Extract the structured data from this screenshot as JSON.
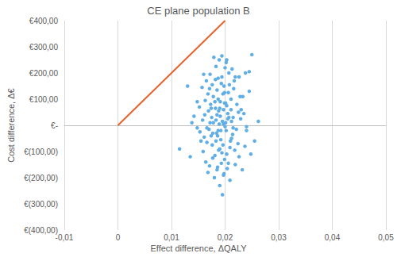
{
  "chart_data": {
    "type": "scatter",
    "title": "CE plane population B",
    "x_label": "Effect difference, ΔQALY",
    "y_label": "Cost difference, Δ€",
    "xlim": [
      -0.01,
      0.05
    ],
    "ylim": [
      -400,
      400
    ],
    "xticks": [
      {
        "value": -0.01,
        "label": "-0,01"
      },
      {
        "value": 0,
        "label": "0"
      },
      {
        "value": 0.01,
        "label": "0,01"
      },
      {
        "value": 0.02,
        "label": "0,02"
      },
      {
        "value": 0.03,
        "label": "0,03"
      },
      {
        "value": 0.04,
        "label": "0,04"
      },
      {
        "value": 0.05,
        "label": "0,05"
      }
    ],
    "yticks": [
      {
        "value": -400,
        "label": "€(400,00)"
      },
      {
        "value": -300,
        "label": "€(300,00)"
      },
      {
        "value": -200,
        "label": "€(200,00)"
      },
      {
        "value": -100,
        "label": "€(100,00)"
      },
      {
        "value": 0,
        "label": "€-"
      },
      {
        "value": 100,
        "label": "€100,00"
      },
      {
        "value": 200,
        "label": "€200,00"
      },
      {
        "value": 300,
        "label": "€300,00"
      },
      {
        "value": 400,
        "label": "€400,00"
      }
    ],
    "grid": true,
    "series": [
      {
        "type": "scatter",
        "color": "#5faee6",
        "x": [
          0.0185,
          0.0192,
          0.0201,
          0.0178,
          0.0196,
          0.021,
          0.0169,
          0.0188,
          0.0205,
          0.0193,
          0.0174,
          0.0215,
          0.0182,
          0.0199,
          0.0163,
          0.0221,
          0.019,
          0.0207,
          0.0176,
          0.0197,
          0.0158,
          0.0228,
          0.0186,
          0.0212,
          0.0171,
          0.0203,
          0.0194,
          0.0166,
          0.0219,
          0.0181,
          0.0235,
          0.0152,
          0.0198,
          0.0189,
          0.0209,
          0.0177,
          0.0224,
          0.0161,
          0.0202,
          0.0184,
          0.0172,
          0.0216,
          0.0195,
          0.024,
          0.0148,
          0.0187,
          0.0206,
          0.0168,
          0.023,
          0.018,
          0.02,
          0.0191,
          0.0213,
          0.0175,
          0.0226,
          0.0159,
          0.0197,
          0.0183,
          0.0211,
          0.0245,
          0.0115,
          0.013,
          0.0195,
          0.025,
          0.0262,
          0.0135,
          0.0245,
          0.0142,
          0.0255,
          0.0232,
          0.0179,
          0.0204,
          0.0192,
          0.0218,
          0.0165,
          0.0187,
          0.0208,
          0.0173,
          0.0199,
          0.0222,
          0.0155,
          0.0237,
          0.019,
          0.0183,
          0.0201,
          0.0168,
          0.0214,
          0.0194,
          0.0176,
          0.0229,
          0.0188,
          0.0205,
          0.017,
          0.0196,
          0.0217,
          0.0162,
          0.0185,
          0.0209,
          0.0191,
          0.0181,
          0.0148,
          0.024,
          0.02,
          0.0174,
          0.0226,
          0.0157,
          0.0193,
          0.0203,
          0.0186,
          0.0212,
          0.0197,
          0.0178,
          0.0233,
          0.0166,
          0.0189,
          0.0207,
          0.0171,
          0.0219,
          0.0183,
          0.0198,
          0.0138,
          0.0248,
          0.0202,
          0.0185,
          0.016,
          0.0225,
          0.0194,
          0.0177,
          0.0211,
          0.019,
          0.0206,
          0.0182,
          0.0215,
          0.0164,
          0.0199,
          0.0238,
          0.0153,
          0.0187,
          0.0203,
          0.0172
        ],
        "values": [
          40,
          -20,
          85,
          10,
          120,
          -60,
          55,
          -95,
          25,
          160,
          -40,
          30,
          175,
          -130,
          95,
          -15,
          65,
          200,
          -75,
          5,
          20,
          110,
          -160,
          -50,
          140,
          75,
          -105,
          -10,
          185,
          90,
          45,
          70,
          -185,
          250,
          -85,
          -125,
          -70,
          -45,
          240,
          -30,
          195,
          140,
          15,
          -20,
          -10,
          100,
          -145,
          120,
          60,
          -200,
          -5,
          35,
          215,
          30,
          -120,
          -100,
          60,
          -60,
          100,
          130,
          -90,
          150,
          -265,
          270,
          15,
          -120,
          205,
          35,
          -60,
          -170,
          260,
          -165,
          -55,
          -95,
          170,
          -20,
          155,
          80,
          125,
          80,
          -60,
          -80,
          -230,
          225,
          10,
          -180,
          -35,
          185,
          155,
          25,
          55,
          45,
          -15,
          -75,
          170,
          40,
          135,
          -210,
          90,
          -115,
          90,
          -5,
          220,
          65,
          185,
          145,
          -145,
          -110,
          -40,
          15,
          -190,
          110,
          110,
          -65,
          5,
          30,
          -155,
          -150,
          20,
          150,
          10,
          -110,
          -20,
          -170,
          195,
          50,
          265,
          -30,
          60,
          -90,
          125,
          65,
          -10,
          -140,
          85,
          200,
          -25,
          180,
          250,
          10
        ]
      },
      {
        "type": "line",
        "color": "#e8622a",
        "x": [
          0,
          0.02
        ],
        "values": [
          0,
          400
        ]
      }
    ]
  }
}
